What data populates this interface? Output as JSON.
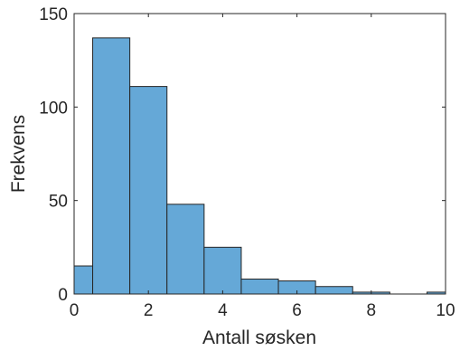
{
  "chart_data": {
    "type": "bar",
    "title": "",
    "xlabel": "Antall søsken",
    "ylabel": "Frekvens",
    "xlim": [
      0,
      10
    ],
    "ylim": [
      0,
      150
    ],
    "grid": false,
    "bar_color": "#65a8d7",
    "bar_edge_color": "#262626",
    "bin_width": 1,
    "bin_edges": [
      -0.5,
      0.5,
      1.5,
      2.5,
      3.5,
      4.5,
      5.5,
      6.5,
      7.5,
      8.5,
      9.5,
      10.5
    ],
    "values": [
      15,
      137,
      111,
      48,
      25,
      8,
      7,
      4,
      1,
      0,
      1
    ],
    "xticks": [
      "0",
      "2",
      "4",
      "6",
      "8",
      "10"
    ],
    "yticks": [
      "0",
      "50",
      "100",
      "150"
    ]
  }
}
